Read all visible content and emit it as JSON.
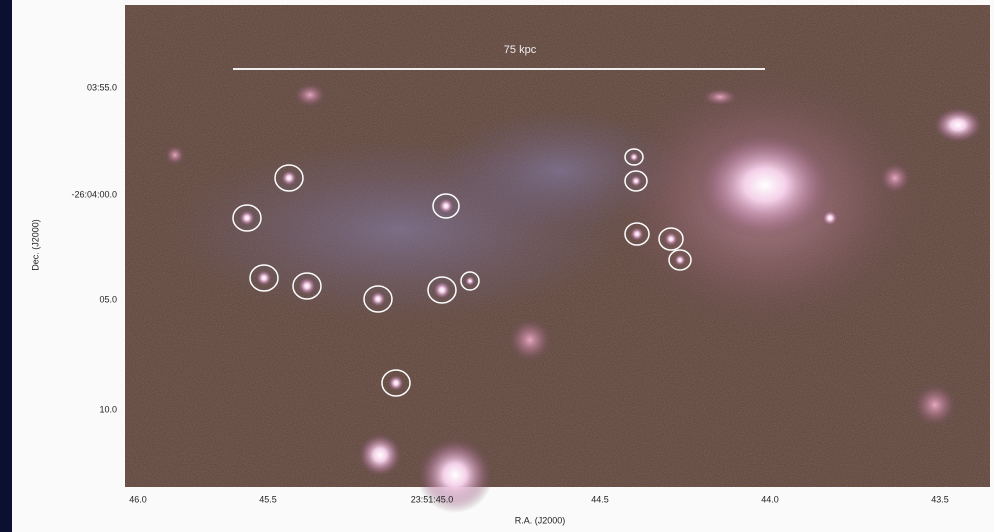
{
  "scale_bar": "75 kpc",
  "y_axis": {
    "label": "Dec. (J2000)",
    "ticks": [
      "03:55.0",
      "-26:04:00.0",
      "05.0",
      "10.0"
    ]
  },
  "x_axis": {
    "label": "R.A. (J2000)",
    "ticks": [
      "46.0",
      "45.5",
      "23:51:45.0",
      "44.5",
      "44.0",
      "43.5"
    ]
  }
}
